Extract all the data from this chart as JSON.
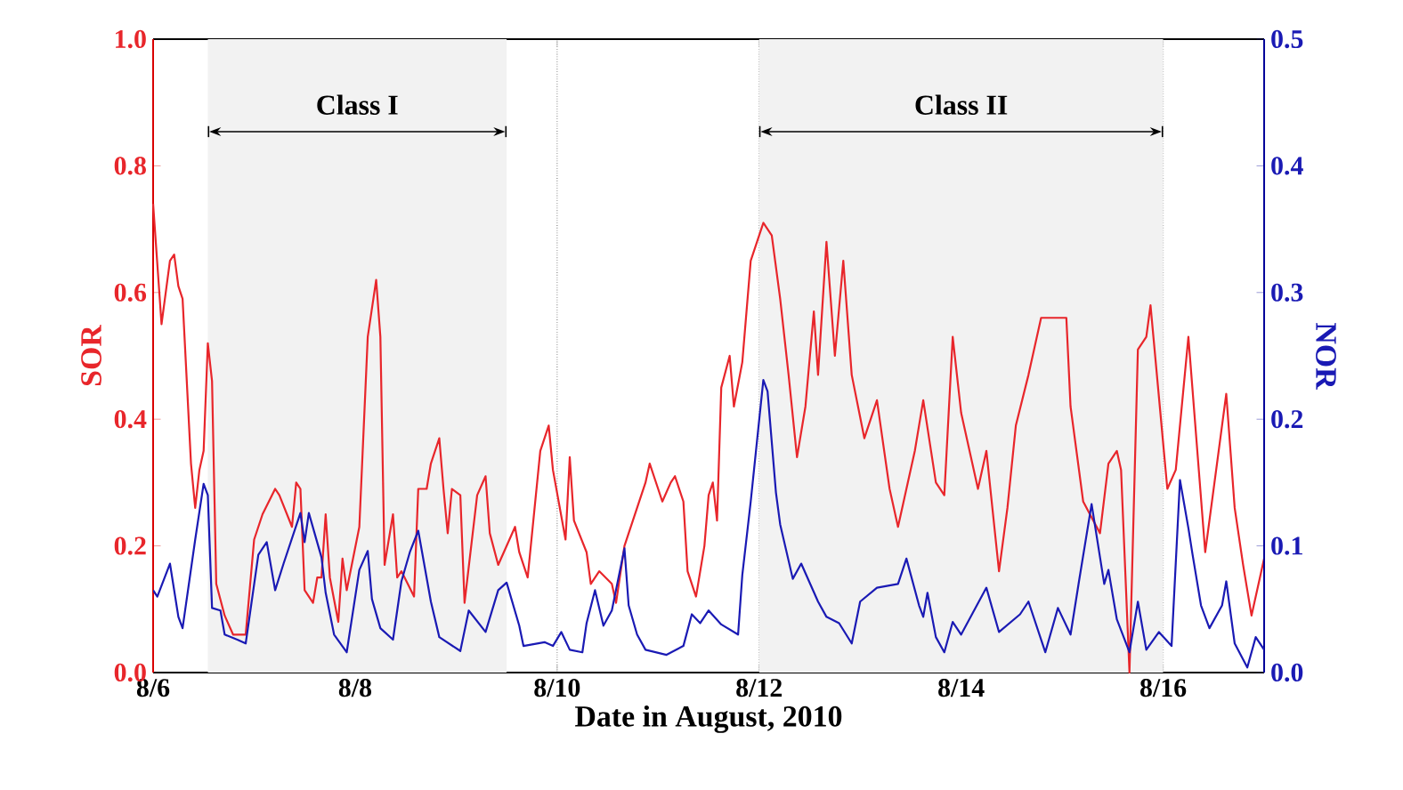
{
  "chart_data": {
    "type": "line",
    "xlabel": "Date in August, 2010",
    "ylabel": "SOR",
    "y2label": "NOR",
    "xlim": [
      "2010-08-06T00:00",
      "2010-08-17T00:00"
    ],
    "xticks": [
      {
        "value": "2010-08-06",
        "label": "8/6"
      },
      {
        "value": "2010-08-08",
        "label": "8/8"
      },
      {
        "value": "2010-08-10",
        "label": "8/10"
      },
      {
        "value": "2010-08-12",
        "label": "8/12"
      },
      {
        "value": "2010-08-14",
        "label": "8/14"
      },
      {
        "value": "2010-08-16",
        "label": "8/16"
      }
    ],
    "ylim": [
      0,
      1
    ],
    "yticks": [
      {
        "value": 0,
        "label": "0.0"
      },
      {
        "value": 0.2,
        "label": "0.2"
      },
      {
        "value": 0.4,
        "label": "0.4"
      },
      {
        "value": 0.6,
        "label": "0.6"
      },
      {
        "value": 0.8,
        "label": "0.8"
      },
      {
        "value": 1,
        "label": "1.0"
      }
    ],
    "y2lim": [
      0,
      0.5
    ],
    "y2ticks": [
      {
        "value": 0,
        "label": "0.0"
      },
      {
        "value": 0.1,
        "label": "0.1"
      },
      {
        "value": 0.2,
        "label": "0.2"
      },
      {
        "value": 0.3,
        "label": "0.3"
      },
      {
        "value": 0.4,
        "label": "0.4"
      },
      {
        "value": 0.5,
        "label": "0.5"
      }
    ],
    "grid": "x",
    "bands": [
      {
        "axis": "x",
        "from": "2010-08-06T13:00",
        "to": "2010-08-09T12:00",
        "label": "Class I"
      },
      {
        "axis": "x",
        "from": "2010-08-12T00:00",
        "to": "2010-08-16T00:00",
        "label": "Class II"
      }
    ],
    "series": [
      {
        "color": "#e8262b",
        "x": [
          "2010-08-06T00:00",
          "2010-08-06T02:00",
          "2010-08-06T04:00",
          "2010-08-06T05:00",
          "2010-08-06T06:00",
          "2010-08-06T07:00",
          "2010-08-06T09:00",
          "2010-08-06T10:00",
          "2010-08-06T11:00",
          "2010-08-06T12:00",
          "2010-08-06T13:00",
          "2010-08-06T14:00",
          "2010-08-06T15:00",
          "2010-08-06T17:00",
          "2010-08-06T19:00",
          "2010-08-06T22:00",
          "2010-08-07T00:00",
          "2010-08-07T02:00",
          "2010-08-07T05:00",
          "2010-08-07T06:00",
          "2010-08-07T09:00",
          "2010-08-07T10:00",
          "2010-08-07T11:00",
          "2010-08-07T12:00",
          "2010-08-07T14:00",
          "2010-08-07T15:00",
          "2010-08-07T16:00",
          "2010-08-07T17:00",
          "2010-08-07T18:00",
          "2010-08-07T20:00",
          "2010-08-07T21:00",
          "2010-08-07T22:00",
          "2010-08-08T01:00",
          "2010-08-08T03:00",
          "2010-08-08T05:00",
          "2010-08-08T06:00",
          "2010-08-08T07:00",
          "2010-08-08T09:00",
          "2010-08-08T10:00",
          "2010-08-08T11:00",
          "2010-08-08T14:00",
          "2010-08-08T15:00",
          "2010-08-08T17:00",
          "2010-08-08T18:00",
          "2010-08-08T20:00",
          "2010-08-08T21:00",
          "2010-08-08T22:00",
          "2010-08-08T23:00",
          "2010-08-09T01:00",
          "2010-08-09T02:00",
          "2010-08-09T05:00",
          "2010-08-09T07:00",
          "2010-08-09T08:00",
          "2010-08-09T10:00",
          "2010-08-09T14:00",
          "2010-08-09T15:00",
          "2010-08-09T17:00",
          "2010-08-09T20:00",
          "2010-08-09T22:00",
          "2010-08-09T23:00",
          "2010-08-10T02:00",
          "2010-08-10T03:00",
          "2010-08-10T04:00",
          "2010-08-10T07:00",
          "2010-08-10T08:00",
          "2010-08-10T10:00",
          "2010-08-10T13:00",
          "2010-08-10T14:00",
          "2010-08-10T16:00",
          "2010-08-10T18:00",
          "2010-08-10T21:00",
          "2010-08-10T22:00",
          "2010-08-11T00:00",
          "2010-08-11T01:00",
          "2010-08-11T03:00",
          "2010-08-11T04:00",
          "2010-08-11T06:00",
          "2010-08-11T07:00",
          "2010-08-11T08:00",
          "2010-08-11T09:00",
          "2010-08-11T11:00",
          "2010-08-11T12:00",
          "2010-08-11T13:00",
          "2010-08-11T14:00",
          "2010-08-11T15:00",
          "2010-08-11T17:00",
          "2010-08-11T18:00",
          "2010-08-11T20:00",
          "2010-08-11T22:00",
          "2010-08-12T01:00",
          "2010-08-12T03:00",
          "2010-08-12T05:00",
          "2010-08-12T07:00",
          "2010-08-12T09:00",
          "2010-08-12T11:00",
          "2010-08-12T13:00",
          "2010-08-12T14:00",
          "2010-08-12T16:00",
          "2010-08-12T18:00",
          "2010-08-12T20:00",
          "2010-08-12T22:00",
          "2010-08-13T01:00",
          "2010-08-13T04:00",
          "2010-08-13T07:00",
          "2010-08-13T09:00",
          "2010-08-13T11:00",
          "2010-08-13T13:00",
          "2010-08-13T15:00",
          "2010-08-13T18:00",
          "2010-08-13T20:00",
          "2010-08-13T22:00",
          "2010-08-14T00:00",
          "2010-08-14T04:00",
          "2010-08-14T06:00",
          "2010-08-14T09:00",
          "2010-08-14T11:00",
          "2010-08-14T13:00",
          "2010-08-14T16:00",
          "2010-08-14T19:00",
          "2010-08-15T01:00",
          "2010-08-15T02:00",
          "2010-08-15T05:00",
          "2010-08-15T09:00",
          "2010-08-15T11:00",
          "2010-08-15T13:00",
          "2010-08-15T14:00",
          "2010-08-15T16:00",
          "2010-08-15T18:00",
          "2010-08-15T20:00",
          "2010-08-15T21:00",
          "2010-08-16T01:00",
          "2010-08-16T03:00",
          "2010-08-16T06:00",
          "2010-08-16T10:00",
          "2010-08-16T11:00",
          "2010-08-16T15:00",
          "2010-08-16T17:00",
          "2010-08-16T19:00",
          "2010-08-16T21:00",
          "2010-08-17T00:00"
        ],
        "values": [
          0.74,
          0.55,
          0.65,
          0.66,
          0.61,
          0.59,
          0.33,
          0.26,
          0.32,
          0.35,
          0.52,
          0.46,
          0.14,
          0.09,
          0.06,
          0.06,
          0.21,
          0.25,
          0.29,
          0.28,
          0.23,
          0.3,
          0.29,
          0.13,
          0.11,
          0.15,
          0.15,
          0.25,
          0.15,
          0.08,
          0.18,
          0.13,
          0.23,
          0.53,
          0.62,
          0.53,
          0.17,
          0.25,
          0.15,
          0.16,
          0.12,
          0.29,
          0.29,
          0.33,
          0.37,
          0.29,
          0.22,
          0.29,
          0.28,
          0.11,
          0.28,
          0.31,
          0.22,
          0.17,
          0.23,
          0.19,
          0.15,
          0.35,
          0.39,
          0.32,
          0.21,
          0.34,
          0.24,
          0.19,
          0.14,
          0.16,
          0.14,
          0.11,
          0.2,
          0.24,
          0.3,
          0.33,
          0.29,
          0.27,
          0.3,
          0.31,
          0.27,
          0.16,
          0.14,
          0.12,
          0.2,
          0.28,
          0.3,
          0.24,
          0.45,
          0.5,
          0.42,
          0.49,
          0.65,
          0.71,
          0.69,
          0.59,
          0.47,
          0.34,
          0.42,
          0.57,
          0.47,
          0.68,
          0.5,
          0.65,
          0.47,
          0.37,
          0.43,
          0.29,
          0.23,
          0.29,
          0.35,
          0.43,
          0.3,
          0.28,
          0.53,
          0.41,
          0.29,
          0.35,
          0.16,
          0.26,
          0.39,
          0.47,
          0.56,
          0.56,
          0.42,
          0.27,
          0.22,
          0.33,
          0.35,
          0.32,
          0.0,
          0.51,
          0.53,
          0.58,
          0.29,
          0.32,
          0.53,
          0.19,
          0.24,
          0.44,
          0.26,
          0.17,
          0.09,
          0.18
        ]
      },
      {
        "color": "#1a1ab4",
        "axis": "y2",
        "x": [
          "2010-08-06T00:00",
          "2010-08-06T01:00",
          "2010-08-06T04:00",
          "2010-08-06T06:00",
          "2010-08-06T07:00",
          "2010-08-06T10:00",
          "2010-08-06T12:00",
          "2010-08-06T13:00",
          "2010-08-06T14:00",
          "2010-08-06T16:00",
          "2010-08-06T17:00",
          "2010-08-06T20:00",
          "2010-08-06T22:00",
          "2010-08-07T01:00",
          "2010-08-07T03:00",
          "2010-08-07T05:00",
          "2010-08-07T07:00",
          "2010-08-07T11:00",
          "2010-08-07T12:00",
          "2010-08-07T13:00",
          "2010-08-07T16:00",
          "2010-08-07T17:00",
          "2010-08-07T19:00",
          "2010-08-07T22:00",
          "2010-08-08T01:00",
          "2010-08-08T03:00",
          "2010-08-08T04:00",
          "2010-08-08T06:00",
          "2010-08-08T09:00",
          "2010-08-08T11:00",
          "2010-08-08T13:00",
          "2010-08-08T15:00",
          "2010-08-08T18:00",
          "2010-08-08T20:00",
          "2010-08-09T01:00",
          "2010-08-09T03:00",
          "2010-08-09T07:00",
          "2010-08-09T10:00",
          "2010-08-09T12:00",
          "2010-08-09T15:00",
          "2010-08-09T16:00",
          "2010-08-09T21:00",
          "2010-08-09T23:00",
          "2010-08-10T01:00",
          "2010-08-10T03:00",
          "2010-08-10T06:00",
          "2010-08-10T07:00",
          "2010-08-10T09:00",
          "2010-08-10T11:00",
          "2010-08-10T13:00",
          "2010-08-10T16:00",
          "2010-08-10T17:00",
          "2010-08-10T19:00",
          "2010-08-10T21:00",
          "2010-08-11T02:00",
          "2010-08-11T06:00",
          "2010-08-11T08:00",
          "2010-08-11T10:00",
          "2010-08-11T12:00",
          "2010-08-11T15:00",
          "2010-08-11T19:00",
          "2010-08-11T20:00",
          "2010-08-11T22:00",
          "2010-08-12T01:00",
          "2010-08-12T02:00",
          "2010-08-12T04:00",
          "2010-08-12T05:00",
          "2010-08-12T08:00",
          "2010-08-12T10:00",
          "2010-08-12T14:00",
          "2010-08-12T16:00",
          "2010-08-12T19:00",
          "2010-08-12T22:00",
          "2010-08-13T00:00",
          "2010-08-13T04:00",
          "2010-08-13T09:00",
          "2010-08-13T11:00",
          "2010-08-13T14:00",
          "2010-08-13T15:00",
          "2010-08-13T16:00",
          "2010-08-13T18:00",
          "2010-08-13T20:00",
          "2010-08-13T22:00",
          "2010-08-14T00:00",
          "2010-08-14T06:00",
          "2010-08-14T09:00",
          "2010-08-14T14:00",
          "2010-08-14T16:00",
          "2010-08-14T20:00",
          "2010-08-14T23:00",
          "2010-08-15T02:00",
          "2010-08-15T04:00",
          "2010-08-15T07:00",
          "2010-08-15T10:00",
          "2010-08-15T11:00",
          "2010-08-15T13:00",
          "2010-08-15T16:00",
          "2010-08-15T18:00",
          "2010-08-15T20:00",
          "2010-08-15T23:00",
          "2010-08-16T02:00",
          "2010-08-16T04:00",
          "2010-08-16T06:00",
          "2010-08-16T07:00",
          "2010-08-16T09:00",
          "2010-08-16T11:00",
          "2010-08-16T14:00",
          "2010-08-16T15:00",
          "2010-08-16T17:00",
          "2010-08-16T20:00",
          "2010-08-16T22:00",
          "2010-08-17T00:00"
        ],
        "values": [
          0.065,
          0.06,
          0.086,
          0.044,
          0.035,
          0.105,
          0.149,
          0.14,
          0.051,
          0.049,
          0.03,
          0.026,
          0.023,
          0.093,
          0.103,
          0.065,
          0.086,
          0.126,
          0.103,
          0.126,
          0.091,
          0.063,
          0.03,
          0.016,
          0.081,
          0.096,
          0.058,
          0.035,
          0.026,
          0.072,
          0.095,
          0.112,
          0.056,
          0.028,
          0.017,
          0.049,
          0.032,
          0.065,
          0.071,
          0.037,
          0.021,
          0.024,
          0.021,
          0.032,
          0.018,
          0.016,
          0.039,
          0.065,
          0.037,
          0.049,
          0.098,
          0.053,
          0.03,
          0.018,
          0.014,
          0.021,
          0.046,
          0.039,
          0.049,
          0.038,
          0.03,
          0.077,
          0.135,
          0.231,
          0.222,
          0.142,
          0.117,
          0.074,
          0.086,
          0.056,
          0.044,
          0.039,
          0.023,
          0.056,
          0.067,
          0.07,
          0.09,
          0.053,
          0.044,
          0.063,
          0.028,
          0.016,
          0.04,
          0.03,
          0.067,
          0.032,
          0.046,
          0.056,
          0.016,
          0.051,
          0.03,
          0.072,
          0.133,
          0.07,
          0.081,
          0.042,
          0.016,
          0.056,
          0.018,
          0.032,
          0.021,
          0.152,
          0.114,
          0.093,
          0.053,
          0.035,
          0.053,
          0.072,
          0.023,
          0.004,
          0.028,
          0.018
        ]
      }
    ]
  }
}
